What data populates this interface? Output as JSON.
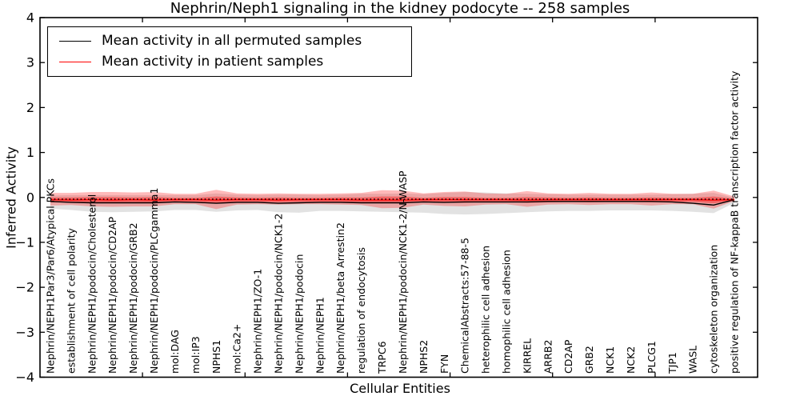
{
  "figure": {
    "title": "Nephrin/Neph1 signaling in the kidney podocyte -- 258 samples",
    "xlabel": "Cellular Entities",
    "ylabel": "Inferred Activity",
    "legend": {
      "items": [
        {
          "label": "Mean activity in all permuted samples",
          "color": "#000000"
        },
        {
          "label": "Mean activity in patient samples",
          "color": "#ff0000"
        }
      ]
    }
  },
  "chart_data": {
    "type": "line",
    "title": "Nephrin/Neph1 signaling in the kidney podocyte -- 258 samples",
    "xlabel": "Cellular Entities",
    "ylabel": "Inferred Activity",
    "ylim": [
      -4,
      4
    ],
    "xlim": [
      0,
      35
    ],
    "grid": false,
    "legend_position": "upper left",
    "ytick_values": [
      4,
      3,
      2,
      1,
      0,
      -1,
      -2,
      -3,
      -4
    ],
    "ytick_labels": [
      "4",
      "3",
      "2",
      "1",
      "0",
      "−1",
      "−2",
      "−3",
      "−4"
    ],
    "xtick_values": [
      5,
      10,
      15,
      20,
      25,
      30
    ],
    "categories": [
      "Nephrin/NEPH1Par3/Par6/Atypical PKCs",
      "establishment of cell polarity",
      "Nephrin/NEPH1/podocin/Cholesterol",
      "Nephrin/NEPH1/podocin/CD2AP",
      "Nephrin/NEPH1/podocin/GRB2",
      "Nephrin/NEPH1/podocin/PLCgamma1",
      "mol:DAG",
      "mol:IP3",
      "NPHS1",
      "mol:Ca2+",
      "Nephrin/NEPH1/ZO-1",
      "Nephrin/NEPH1/podocin/NCK1-2",
      "Nephrin/NEPH1/podocin",
      "Nephrin/NEPH1",
      "Nephrin/NEPH1/beta Arrestin2",
      "regulation of endocytosis",
      "TRPC6",
      "Nephrin/NEPH1/podocin/NCK1-2/N-WASP",
      "NPHS2",
      "FYN",
      "ChemicalAbstracts:57-88-5",
      "heterophilic cell adhesion",
      "homophilic cell adhesion",
      "KIRREL",
      "ARRB2",
      "CD2AP",
      "GRB2",
      "NCK1",
      "NCK2",
      "PLCG1",
      "TJP1",
      "WASL",
      "cytoskeleton organization",
      "positive regulation of NF-kappaB transcription factor activity"
    ],
    "series": [
      {
        "name": "Mean activity in all permuted samples",
        "color": "#000000",
        "style": "solid",
        "values": [
          -0.09,
          -0.11,
          -0.12,
          -0.12,
          -0.12,
          -0.12,
          -0.1,
          -0.11,
          -0.13,
          -0.11,
          -0.11,
          -0.13,
          -0.12,
          -0.11,
          -0.11,
          -0.12,
          -0.12,
          -0.12,
          -0.1,
          -0.11,
          -0.1,
          -0.1,
          -0.1,
          -0.1,
          -0.09,
          -0.09,
          -0.09,
          -0.09,
          -0.09,
          -0.09,
          -0.1,
          -0.13,
          -0.17,
          -0.05
        ]
      },
      {
        "name": "Mean activity in patient samples",
        "color": "#ff0000",
        "style": "solid",
        "values": [
          -0.05,
          -0.06,
          -0.05,
          -0.06,
          -0.05,
          -0.06,
          -0.05,
          -0.05,
          -0.06,
          -0.05,
          -0.05,
          -0.06,
          -0.05,
          -0.05,
          -0.05,
          -0.06,
          -0.06,
          -0.06,
          -0.05,
          -0.05,
          -0.05,
          -0.05,
          -0.05,
          -0.06,
          -0.05,
          -0.05,
          -0.05,
          -0.05,
          -0.05,
          -0.05,
          -0.05,
          -0.05,
          -0.06,
          -0.05
        ]
      }
    ],
    "bands": [
      {
        "name": "permuted-samples-range",
        "color": "rgba(0,0,0,0.115)",
        "upper": [
          0.04,
          0.05,
          0.05,
          0.05,
          0.05,
          0.05,
          0.05,
          0.05,
          0.09,
          0.06,
          0.05,
          0.06,
          0.06,
          0.05,
          0.06,
          0.08,
          0.08,
          0.09,
          0.07,
          0.1,
          0.12,
          0.11,
          0.09,
          0.08,
          0.07,
          0.06,
          0.06,
          0.06,
          0.06,
          0.06,
          0.07,
          0.08,
          0.1,
          -0.01
        ],
        "lower": [
          -0.25,
          -0.28,
          -0.32,
          -0.33,
          -0.32,
          -0.31,
          -0.28,
          -0.28,
          -0.32,
          -0.29,
          -0.28,
          -0.33,
          -0.34,
          -0.3,
          -0.3,
          -0.31,
          -0.32,
          -0.33,
          -0.34,
          -0.37,
          -0.38,
          -0.37,
          -0.35,
          -0.33,
          -0.31,
          -0.3,
          -0.3,
          -0.29,
          -0.29,
          -0.29,
          -0.3,
          -0.32,
          -0.35,
          -0.12
        ]
      },
      {
        "name": "patient-samples-range-outer",
        "color": "rgba(255,0,0,0.27)",
        "upper": [
          0.1,
          0.1,
          0.12,
          0.12,
          0.11,
          0.12,
          0.08,
          0.08,
          0.17,
          0.09,
          0.08,
          0.09,
          0.08,
          0.08,
          0.09,
          0.1,
          0.16,
          0.15,
          0.09,
          0.12,
          0.13,
          0.09,
          0.08,
          0.14,
          0.09,
          0.08,
          0.1,
          0.08,
          0.08,
          0.11,
          0.08,
          0.08,
          0.15,
          0.02
        ],
        "lower": [
          -0.18,
          -0.17,
          -0.2,
          -0.21,
          -0.2,
          -0.2,
          -0.15,
          -0.15,
          -0.26,
          -0.16,
          -0.15,
          -0.16,
          -0.15,
          -0.15,
          -0.16,
          -0.17,
          -0.24,
          -0.23,
          -0.16,
          -0.19,
          -0.2,
          -0.16,
          -0.15,
          -0.21,
          -0.16,
          -0.15,
          -0.17,
          -0.15,
          -0.15,
          -0.18,
          -0.15,
          -0.15,
          -0.25,
          -0.08
        ]
      },
      {
        "name": "patient-samples-range-inner",
        "color": "rgba(255,0,0,0.38)",
        "upper": [
          0.0,
          0.0,
          0.01,
          0.01,
          0.0,
          0.01,
          -0.01,
          -0.01,
          0.02,
          0.0,
          -0.01,
          0.0,
          -0.01,
          -0.01,
          0.0,
          0.0,
          0.02,
          0.02,
          -0.01,
          0.01,
          0.01,
          -0.01,
          -0.01,
          0.01,
          0.0,
          -0.01,
          0.0,
          -0.01,
          -0.01,
          0.0,
          -0.01,
          -0.01,
          0.02,
          -0.03
        ],
        "lower": [
          -0.11,
          -0.11,
          -0.12,
          -0.12,
          -0.11,
          -0.12,
          -0.1,
          -0.1,
          -0.13,
          -0.11,
          -0.1,
          -0.11,
          -0.1,
          -0.1,
          -0.11,
          -0.11,
          -0.13,
          -0.13,
          -0.1,
          -0.12,
          -0.12,
          -0.1,
          -0.1,
          -0.12,
          -0.11,
          -0.1,
          -0.11,
          -0.1,
          -0.1,
          -0.11,
          -0.1,
          -0.1,
          -0.13,
          -0.07
        ]
      }
    ],
    "reference_line": {
      "name": "zero-reference",
      "value": -0.04,
      "color": "#000000",
      "style": "dotted"
    }
  }
}
